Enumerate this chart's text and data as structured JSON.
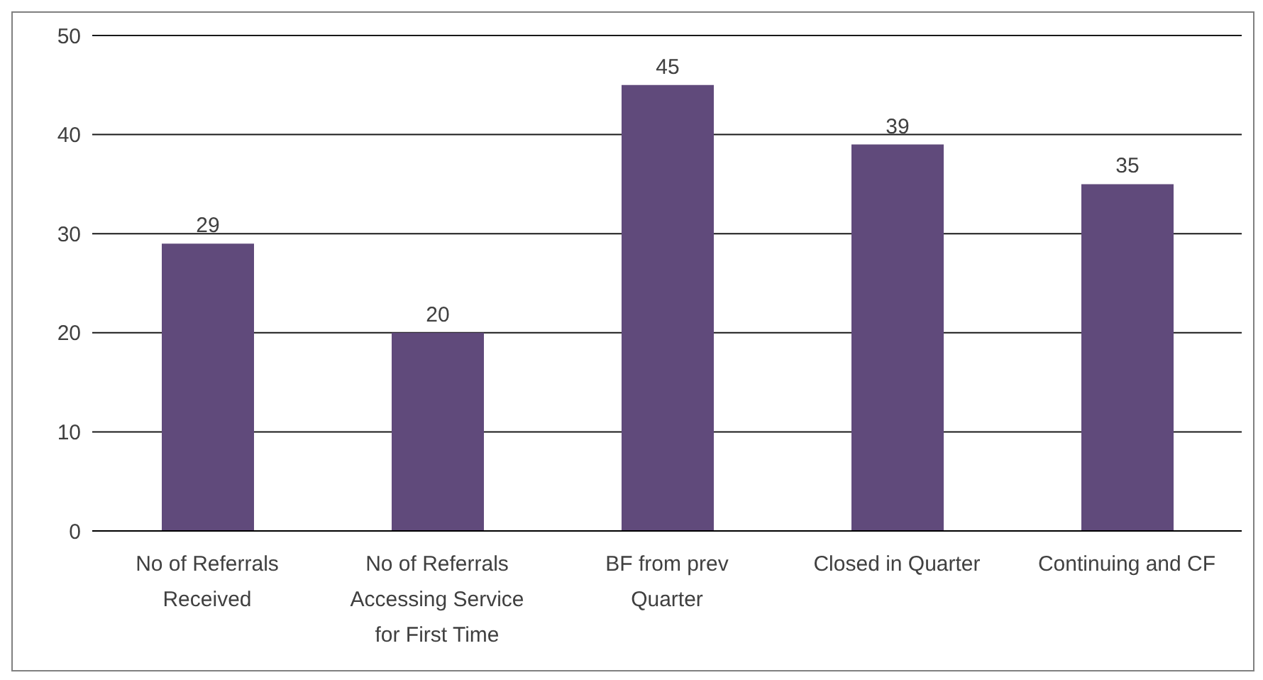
{
  "chart_data": {
    "type": "bar",
    "categories": [
      "No of Referrals Received",
      "No of Referrals Accessing Service for First Time",
      "BF from prev Quarter",
      "Closed in Quarter",
      "Continuing and CF"
    ],
    "values": [
      29,
      20,
      45,
      39,
      35
    ],
    "color": "#604a7b",
    "ylim": [
      0,
      50
    ],
    "yticks": [
      0,
      10,
      20,
      30,
      40,
      50
    ],
    "grid": "y",
    "data_labels": true
  }
}
